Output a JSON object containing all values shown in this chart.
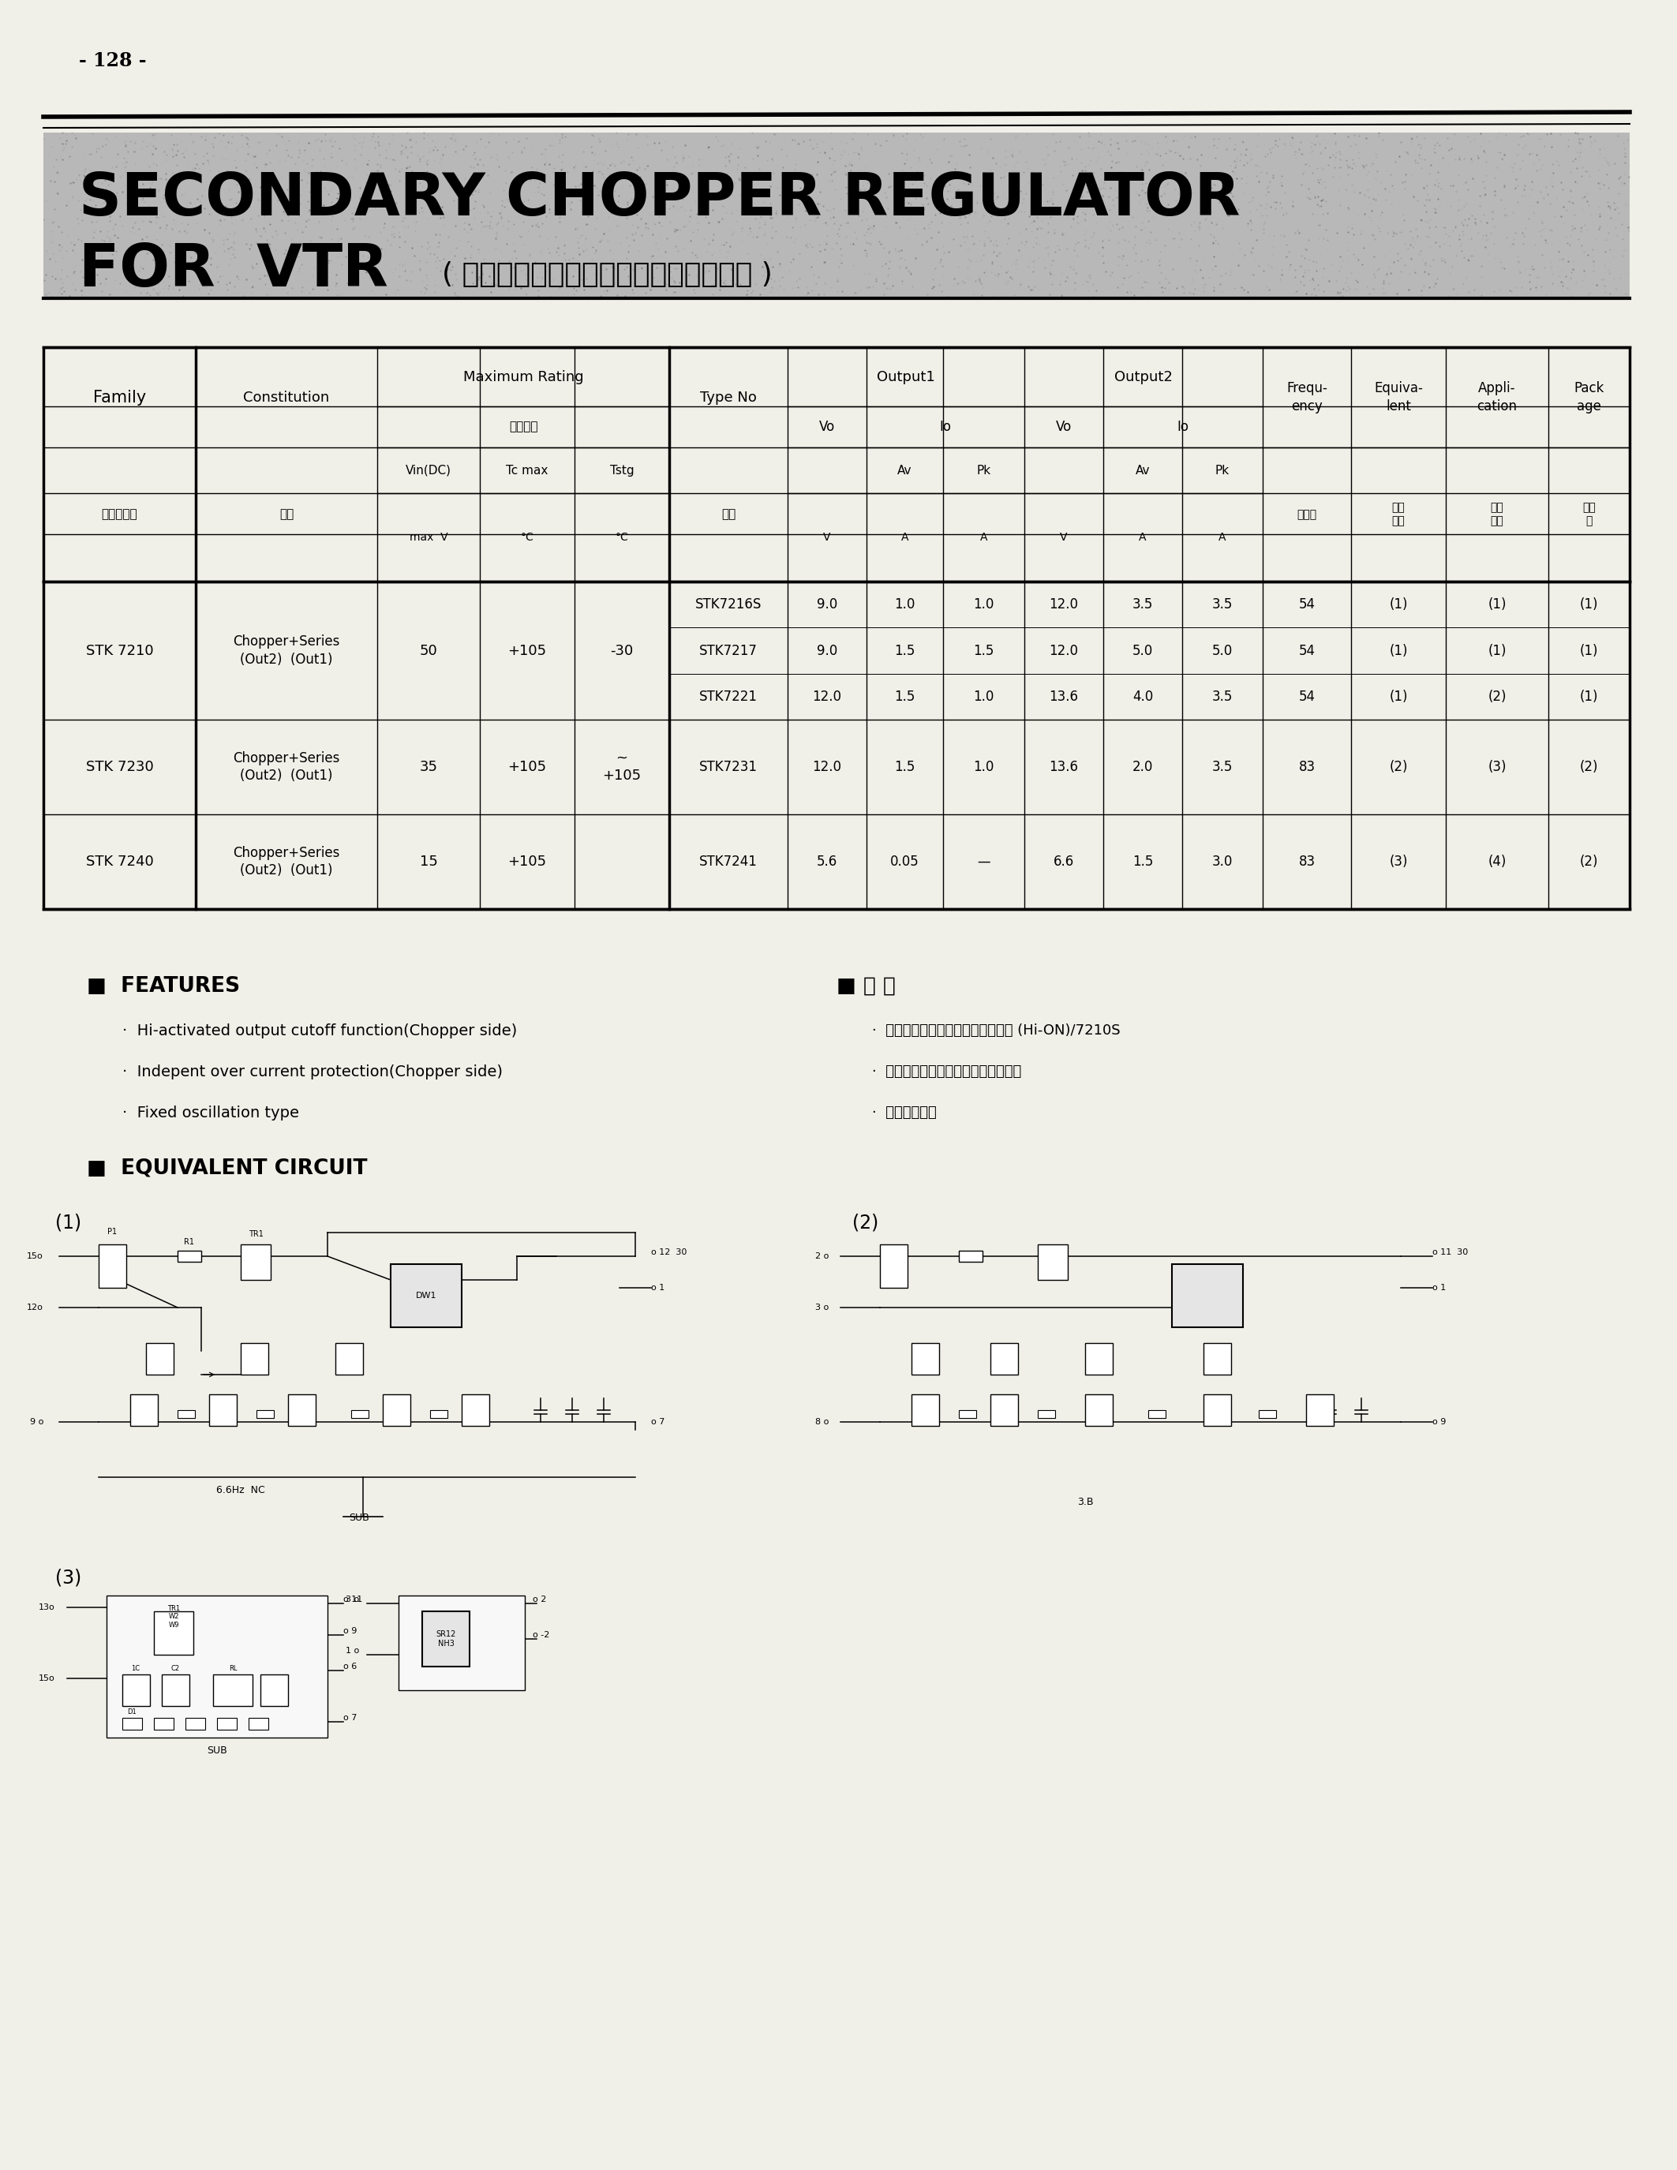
{
  "page_number": "- 128 -",
  "title_line1": "SECONDARY CHOPPER REGULATOR",
  "title_line2": "FOR  VTR",
  "title_japanese": "( セカンダリーチョッパーレギュレータ )",
  "paper_color": "#f0efe8",
  "features_title": "■  FEATURES",
  "features": [
    "Hi-activated output cutoff function(Chopper side)",
    "Indepent over current protection(Chopper side)",
    "Fixed oscillation type"
  ],
  "tokucho_title": "■ 特 長",
  "tokucho": [
    "チョッパー側はカットオフ機能付 (Hi-ON)/7210S",
    "チョッパー側は過電流保護機能内蔵",
    "他助発振方式"
  ],
  "equiv_circuit_title": "■  EQUIVALENT CIRCUIT",
  "table_rows": [
    {
      "family": "STK 7210",
      "constitution": "Chopper+Series\n(Out2)  (Out1)",
      "vin_dc": "50",
      "tc_max": "+105",
      "tstg": "-30",
      "types": [
        {
          "type": "STK7216S",
          "vo1": "9.0",
          "io1_av": "1.0",
          "io1_pk": "1.0",
          "vo2": "12.0",
          "io2_av": "3.5",
          "io2_pk": "3.5",
          "freq": "54",
          "equiv": "(1)",
          "appli": "(1)",
          "pack": "(1)"
        },
        {
          "type": "STK7217",
          "vo1": "9.0",
          "io1_av": "1.5",
          "io1_pk": "1.5",
          "vo2": "12.0",
          "io2_av": "5.0",
          "io2_pk": "5.0",
          "freq": "54",
          "equiv": "(1)",
          "appli": "(1)",
          "pack": "(1)"
        },
        {
          "type": "STK7221",
          "vo1": "12.0",
          "io1_av": "1.5",
          "io1_pk": "1.0",
          "vo2": "13.6",
          "io2_av": "4.0",
          "io2_pk": "3.5",
          "freq": "54",
          "equiv": "(1)",
          "appli": "(2)",
          "pack": "(1)"
        }
      ]
    },
    {
      "family": "STK 7230",
      "constitution": "Chopper+Series\n(Out2)  (Out1)",
      "vin_dc": "35",
      "tc_max": "+105",
      "tstg": "~\n+105",
      "types": [
        {
          "type": "STK7231",
          "vo1": "12.0",
          "io1_av": "1.5",
          "io1_pk": "1.0",
          "vo2": "13.6",
          "io2_av": "2.0",
          "io2_pk": "3.5",
          "freq": "83",
          "equiv": "(2)",
          "appli": "(3)",
          "pack": "(2)"
        }
      ]
    },
    {
      "family": "STK 7240",
      "constitution": "Chopper+Series\n(Out2)  (Out1)",
      "vin_dc": "15",
      "tc_max": "+105",
      "tstg": "",
      "types": [
        {
          "type": "STK7241",
          "vo1": "5.6",
          "io1_av": "0.05",
          "io1_pk": "—",
          "vo2": "6.6",
          "io2_av": "1.5",
          "io2_pk": "3.0",
          "freq": "83",
          "equiv": "(3)",
          "appli": "(4)",
          "pack": "(2)"
        }
      ]
    }
  ]
}
